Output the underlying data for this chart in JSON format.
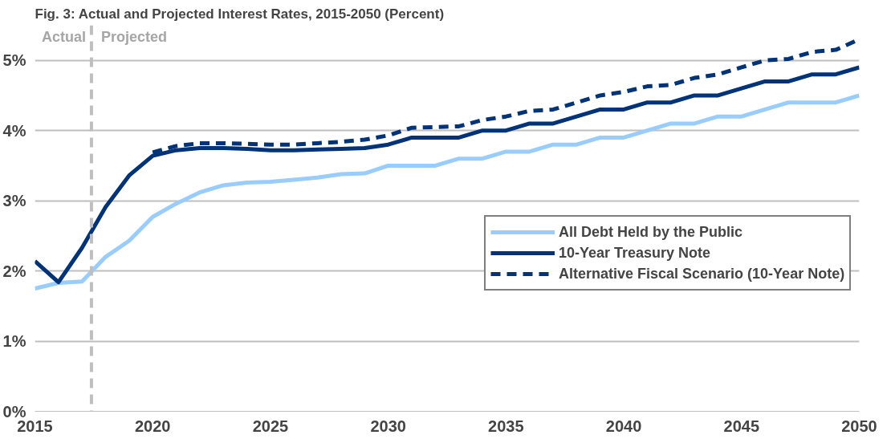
{
  "chart_data": {
    "type": "line",
    "title": "Fig. 3: Actual and Projected Interest Rates, 2015-2050 (Percent)",
    "x": [
      2015,
      2016,
      2017,
      2018,
      2019,
      2020,
      2021,
      2022,
      2023,
      2024,
      2025,
      2026,
      2027,
      2028,
      2029,
      2030,
      2031,
      2032,
      2033,
      2034,
      2035,
      2036,
      2037,
      2038,
      2039,
      2040,
      2041,
      2042,
      2043,
      2044,
      2045,
      2046,
      2047,
      2048,
      2049,
      2050
    ],
    "series": [
      {
        "name": "All Debt Held by the Public",
        "color": "#99ccff",
        "line_style": "solid",
        "values": [
          1.75,
          1.83,
          1.85,
          2.2,
          2.43,
          2.77,
          2.96,
          3.12,
          3.22,
          3.26,
          3.27,
          3.3,
          3.33,
          3.38,
          3.39,
          3.5,
          3.5,
          3.5,
          3.6,
          3.6,
          3.7,
          3.7,
          3.8,
          3.8,
          3.9,
          3.9,
          4.0,
          4.1,
          4.1,
          4.2,
          4.2,
          4.3,
          4.4,
          4.4,
          4.4,
          4.5
        ]
      },
      {
        "name": "10-Year Treasury Note",
        "color": "#003377",
        "line_style": "solid",
        "values": [
          2.14,
          1.84,
          2.33,
          2.91,
          3.36,
          3.64,
          3.72,
          3.75,
          3.75,
          3.74,
          3.72,
          3.72,
          3.73,
          3.74,
          3.75,
          3.8,
          3.9,
          3.9,
          3.9,
          4.0,
          4.0,
          4.1,
          4.1,
          4.2,
          4.3,
          4.3,
          4.4,
          4.4,
          4.5,
          4.5,
          4.6,
          4.7,
          4.7,
          4.8,
          4.8,
          4.9
        ]
      },
      {
        "name": "Alternative Fiscal Scenario (10-Year Note)",
        "color": "#003377",
        "line_style": "dashed",
        "x": [
          2020,
          2021,
          2022,
          2023,
          2024,
          2025,
          2026,
          2027,
          2028,
          2029,
          2030,
          2031,
          2032,
          2033,
          2034,
          2035,
          2036,
          2037,
          2038,
          2039,
          2040,
          2041,
          2042,
          2043,
          2044,
          2045,
          2046,
          2047,
          2048,
          2049,
          2050
        ],
        "values": [
          3.69,
          3.78,
          3.82,
          3.82,
          3.81,
          3.8,
          3.8,
          3.82,
          3.84,
          3.87,
          3.93,
          4.04,
          4.05,
          4.06,
          4.15,
          4.2,
          4.28,
          4.3,
          4.4,
          4.5,
          4.55,
          4.63,
          4.65,
          4.75,
          4.8,
          4.9,
          5.0,
          5.02,
          5.12,
          5.15,
          5.3
        ]
      }
    ],
    "xlim": [
      2015,
      2050
    ],
    "xticks": [
      2015,
      2020,
      2025,
      2030,
      2035,
      2040,
      2045,
      2050
    ],
    "ylim": [
      0,
      5.5
    ],
    "yticks": [
      {
        "value": 0,
        "label": "0%"
      },
      {
        "value": 1,
        "label": "1%"
      },
      {
        "value": 2,
        "label": "2%"
      },
      {
        "value": 3,
        "label": "3%"
      },
      {
        "value": 4,
        "label": "4%"
      },
      {
        "value": 5,
        "label": "5%"
      }
    ],
    "ref_lines": [
      {
        "axis": "x",
        "value": 2017.4,
        "label": null,
        "color": "#bfbfbf",
        "line_style": "dashed"
      }
    ],
    "annotations": [
      "Actual",
      "Projected"
    ],
    "grid": "y",
    "legend": "right",
    "marker": "none"
  }
}
